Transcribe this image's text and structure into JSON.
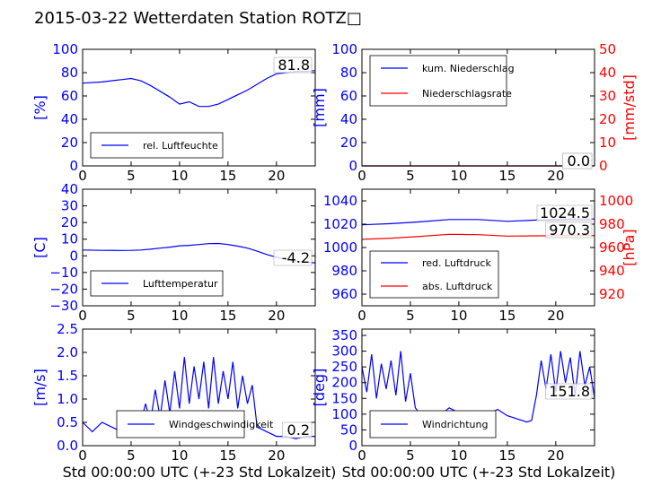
{
  "title": "2015-03-22 Wetterdaten Station ROTZ□",
  "xlabel": "Std 00:00:00 UTC (+-23 Std Lokalzeit)",
  "colors": {
    "primary": "#0000ff",
    "secondary": "#ff0000",
    "axis": "#000000"
  },
  "chart_data": [
    {
      "type": "line",
      "ylabel": "[%]",
      "ylim": [
        0,
        100
      ],
      "yticks": [
        "0",
        "20",
        "40",
        "60",
        "80",
        "100"
      ],
      "xticks": [
        "0",
        "5",
        "10",
        "15",
        "20"
      ],
      "xlim": [
        0,
        24
      ],
      "legend": "bottom-left",
      "annotation": "81.8",
      "series": [
        {
          "name": "rel. Luftfeuchte",
          "axis": "left",
          "x": [
            0,
            2,
            4,
            5,
            6,
            7,
            8,
            9,
            10,
            11,
            12,
            13,
            14,
            15,
            16,
            17,
            18,
            19,
            20,
            21,
            22,
            23,
            24
          ],
          "y": [
            71,
            72,
            74,
            75,
            73,
            69,
            64,
            59,
            53,
            55,
            51,
            51,
            53,
            57,
            61,
            65,
            70,
            75,
            79,
            80,
            81,
            81,
            81.8
          ]
        }
      ]
    },
    {
      "type": "line",
      "ylabel": "[mm]",
      "y2label": "[mm/std]",
      "ylim": [
        0,
        100
      ],
      "y2lim": [
        0,
        50
      ],
      "yticks": [
        "0",
        "20",
        "40",
        "60",
        "80",
        "100"
      ],
      "y2ticks": [
        "0",
        "10",
        "20",
        "30",
        "40",
        "50"
      ],
      "xticks": [
        "0",
        "5",
        "10",
        "15",
        "20"
      ],
      "xlim": [
        0,
        24
      ],
      "legend": "top-left",
      "annotation": "0.0",
      "annotation2": "0.0",
      "series": [
        {
          "name": "kum. Niederschlag",
          "axis": "left",
          "x": [
            0,
            24
          ],
          "y": [
            0,
            0
          ]
        },
        {
          "name": "Niederschlagsrate",
          "axis": "right",
          "x": [
            0,
            24
          ],
          "y": [
            0,
            0
          ]
        }
      ]
    },
    {
      "type": "line",
      "ylabel": "[C]",
      "ylim": [
        -30,
        40
      ],
      "yticks": [
        "−30",
        "−20",
        "−10",
        "0",
        "10",
        "20",
        "30",
        "40"
      ],
      "xticks": [
        "0",
        "5",
        "10",
        "15",
        "20"
      ],
      "xlim": [
        0,
        24
      ],
      "legend": "bottom-left",
      "annotation": "-4.2",
      "series": [
        {
          "name": "Lufttemperatur",
          "axis": "left",
          "x": [
            0,
            2,
            4,
            5,
            6,
            7,
            8,
            9,
            10,
            11,
            12,
            13,
            14,
            15,
            16,
            17,
            18,
            19,
            20,
            21,
            22,
            23,
            24
          ],
          "y": [
            3.5,
            3.3,
            3.2,
            3.3,
            3.5,
            4,
            4.6,
            5.2,
            6,
            6.3,
            6.8,
            7.3,
            7.4,
            6.8,
            5.8,
            4.6,
            2.8,
            0.8,
            -0.8,
            -2.2,
            -3.2,
            -3.8,
            -4.2
          ]
        }
      ]
    },
    {
      "type": "line",
      "ylabel": "",
      "y2label": "[hPa]",
      "ylim": [
        950,
        1050
      ],
      "y2lim": [
        910,
        1010
      ],
      "yticks": [
        "960",
        "980",
        "1000",
        "1020",
        "1040"
      ],
      "y2ticks": [
        "920",
        "940",
        "960",
        "980",
        "1000"
      ],
      "xticks": [
        "0",
        "5",
        "10",
        "15",
        "20"
      ],
      "xlim": [
        0,
        24
      ],
      "legend": "bottom-left",
      "annotation": "1024.5",
      "annotation2": "970.3",
      "series": [
        {
          "name": "red. Luftdruck",
          "axis": "left",
          "x": [
            0,
            3,
            6,
            9,
            12,
            15,
            18,
            21,
            24
          ],
          "y": [
            1019.5,
            1020.5,
            1022,
            1024,
            1024,
            1022.5,
            1023.5,
            1024.3,
            1024.5
          ]
        },
        {
          "name": "abs. Luftdruck",
          "axis": "right",
          "x": [
            0,
            3,
            6,
            9,
            12,
            15,
            18,
            21,
            24
          ],
          "y": [
            967,
            968,
            969.5,
            971.3,
            971,
            969.8,
            970,
            970.2,
            970.3
          ]
        }
      ]
    },
    {
      "type": "line",
      "ylabel": "[m/s]",
      "ylim": [
        0,
        2.5
      ],
      "yticks": [
        "0.0",
        "0.5",
        "1.0",
        "1.5",
        "2.0",
        "2.5"
      ],
      "xticks": [
        "0",
        "5",
        "10",
        "15",
        "20"
      ],
      "xlim": [
        0,
        24
      ],
      "legend": "bottom-center",
      "annotation": "0.2",
      "series": [
        {
          "name": "Windgeschwindigkeit",
          "axis": "left",
          "x": [
            0,
            1,
            2,
            3,
            4,
            5,
            6,
            6.5,
            7,
            7.5,
            8,
            8.5,
            9,
            9.5,
            10,
            10.5,
            11,
            11.5,
            12,
            12.5,
            13,
            13.5,
            14,
            14.5,
            15,
            15.5,
            16,
            16.5,
            17,
            17.5,
            18,
            19,
            20,
            21,
            22,
            23,
            24
          ],
          "y": [
            0.5,
            0.3,
            0.5,
            0.4,
            0.3,
            0.4,
            0.5,
            0.9,
            0.5,
            1.2,
            0.6,
            1.4,
            0.7,
            1.6,
            0.8,
            1.9,
            0.9,
            1.7,
            1.0,
            1.8,
            0.8,
            1.9,
            0.9,
            1.6,
            1.0,
            1.8,
            0.8,
            1.5,
            0.9,
            1.3,
            0.4,
            0.3,
            0.2,
            0.2,
            0.15,
            0.2,
            0.2
          ]
        }
      ]
    },
    {
      "type": "line",
      "ylabel": "[deg]",
      "ylim": [
        0,
        370
      ],
      "yticks": [
        "0",
        "50",
        "100",
        "150",
        "200",
        "250",
        "300",
        "350"
      ],
      "xticks": [
        "0",
        "5",
        "10",
        "15",
        "20"
      ],
      "xlim": [
        0,
        24
      ],
      "legend": "bottom-left",
      "annotation": "151.8",
      "series": [
        {
          "name": "Windrichtung",
          "axis": "left",
          "x": [
            0,
            0.5,
            1,
            1.5,
            2,
            2.5,
            3,
            3.5,
            4,
            4.5,
            5,
            5.5,
            6,
            7,
            8,
            9,
            10,
            11,
            12,
            13,
            14,
            15,
            16,
            17,
            17.5,
            18,
            18.5,
            19,
            19.5,
            20,
            20.5,
            21,
            21.5,
            22,
            22.5,
            23,
            23.5,
            24
          ],
          "y": [
            250,
            170,
            290,
            150,
            260,
            180,
            270,
            160,
            300,
            140,
            230,
            120,
            100,
            110,
            95,
            120,
            105,
            90,
            110,
            100,
            115,
            95,
            85,
            75,
            80,
            160,
            270,
            180,
            290,
            170,
            300,
            200,
            280,
            160,
            300,
            190,
            250,
            151.8
          ]
        }
      ]
    }
  ]
}
